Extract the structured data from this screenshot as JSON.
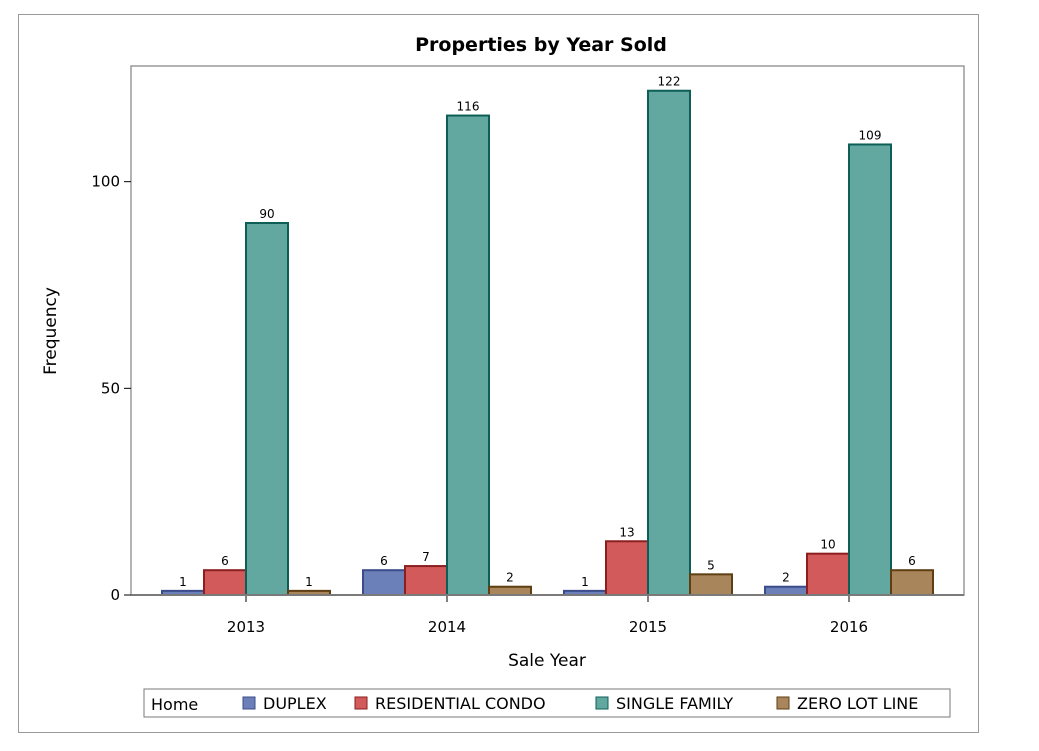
{
  "chart_data": {
    "type": "bar",
    "title": "Properties by Year Sold",
    "xlabel": "Sale Year",
    "ylabel": "Frequency",
    "categories": [
      "2013",
      "2014",
      "2015",
      "2016"
    ],
    "ylim": [
      0,
      124
    ],
    "yticks": [
      0,
      50,
      100
    ],
    "legend": {
      "title": "Home",
      "placement": "bottom"
    },
    "series": [
      {
        "name": "DUPLEX",
        "values": [
          1,
          6,
          1,
          2
        ],
        "color": "#6b7fb9",
        "stroke": "#3b4c8a"
      },
      {
        "name": "RESIDENTIAL CONDO",
        "values": [
          6,
          7,
          13,
          10
        ],
        "color": "#d35a5a",
        "stroke": "#8b1e1e"
      },
      {
        "name": "SINGLE FAMILY",
        "values": [
          90,
          116,
          122,
          109
        ],
        "color": "#63a8a0",
        "stroke": "#0d5e57"
      },
      {
        "name": "ZERO LOT LINE",
        "values": [
          1,
          2,
          5,
          6
        ],
        "color": "#a8855a",
        "stroke": "#5e3e12"
      }
    ]
  }
}
